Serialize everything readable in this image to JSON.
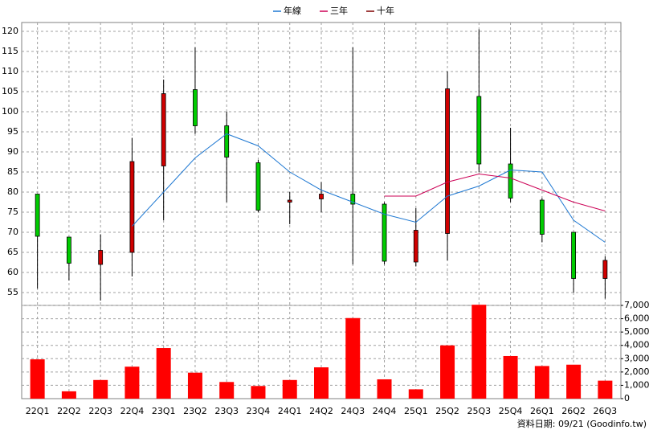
{
  "chart_data": {
    "type": "candlestick",
    "categories": [
      "22Q1",
      "22Q2",
      "22Q3",
      "22Q4",
      "23Q1",
      "23Q2",
      "23Q3",
      "23Q4",
      "24Q1",
      "24Q2",
      "24Q3",
      "24Q4",
      "25Q1",
      "25Q2",
      "25Q3",
      "25Q4",
      "26Q1",
      "26Q2",
      "26Q3"
    ],
    "open": [
      79.5,
      68.8,
      62,
      65,
      86.5,
      105.5,
      96.5,
      87.3,
      77.5,
      78.3,
      79.5,
      77,
      62.6,
      69.7,
      103.8,
      87,
      78,
      70,
      58.5
    ],
    "high": [
      79.5,
      68.8,
      69.5,
      93.5,
      108,
      116,
      100,
      88,
      80,
      82.5,
      116,
      77.5,
      76,
      110,
      120.5,
      96,
      78.5,
      70,
      64
    ],
    "low": [
      56,
      58,
      53,
      59,
      73,
      94.5,
      77.5,
      75,
      72,
      75,
      62,
      62,
      61.5,
      63,
      85,
      77.5,
      67.5,
      55,
      53.5
    ],
    "close": [
      69,
      62.3,
      65.5,
      87.6,
      104.5,
      96.5,
      88.7,
      75.5,
      78,
      79.5,
      77,
      62.8,
      70.5,
      105.7,
      87,
      78.5,
      69.5,
      58.5,
      63
    ],
    "up_color": "#d00000",
    "down_color": "#00cc00",
    "series": [
      {
        "name": "年線",
        "color": "#1e78d2",
        "values": [
          null,
          null,
          null,
          71.5,
          80,
          88.5,
          94.5,
          91.5,
          85,
          80.5,
          77.5,
          74.5,
          72.5,
          79,
          81.5,
          85.5,
          85,
          73,
          67.5
        ]
      },
      {
        "name": "三年",
        "color": "#cc0055",
        "values": [
          null,
          null,
          null,
          null,
          null,
          null,
          null,
          null,
          null,
          null,
          null,
          79,
          79,
          82.5,
          84.5,
          83.5,
          80.5,
          77.5,
          75.3
        ]
      },
      {
        "name": "十年",
        "color": "#800000",
        "values": [
          null,
          null,
          null,
          null,
          null,
          null,
          null,
          null,
          null,
          null,
          null,
          null,
          null,
          null,
          null,
          null,
          null,
          null,
          null
        ]
      }
    ],
    "ylim": [
      51.8,
      122.2
    ],
    "yticks": [
      55,
      60,
      65,
      70,
      75,
      80,
      85,
      90,
      95,
      100,
      105,
      110,
      115,
      120
    ],
    "grid": true,
    "volume": {
      "color": "#ff0000",
      "values": [
        2950,
        550,
        1400,
        2400,
        3800,
        1950,
        1250,
        950,
        1400,
        2350,
        6050,
        1450,
        700,
        4000,
        7050,
        3200,
        2450,
        2550,
        1350
      ],
      "ylim": [
        0,
        7000
      ],
      "yticks": [
        0,
        {
          "value": 1000,
          "label": "1,000"
        },
        {
          "value": 2000,
          "label": "2,000"
        },
        {
          "value": 3000,
          "label": "3,000"
        },
        {
          "value": 4000,
          "label": "4,000"
        },
        {
          "value": 5000,
          "label": "5,000"
        },
        {
          "value": 6000,
          "label": "6,000"
        },
        {
          "value": 7000,
          "label": "7,000"
        }
      ]
    },
    "source": "資料日期: 09/21 (Goodinfo.tw)"
  }
}
